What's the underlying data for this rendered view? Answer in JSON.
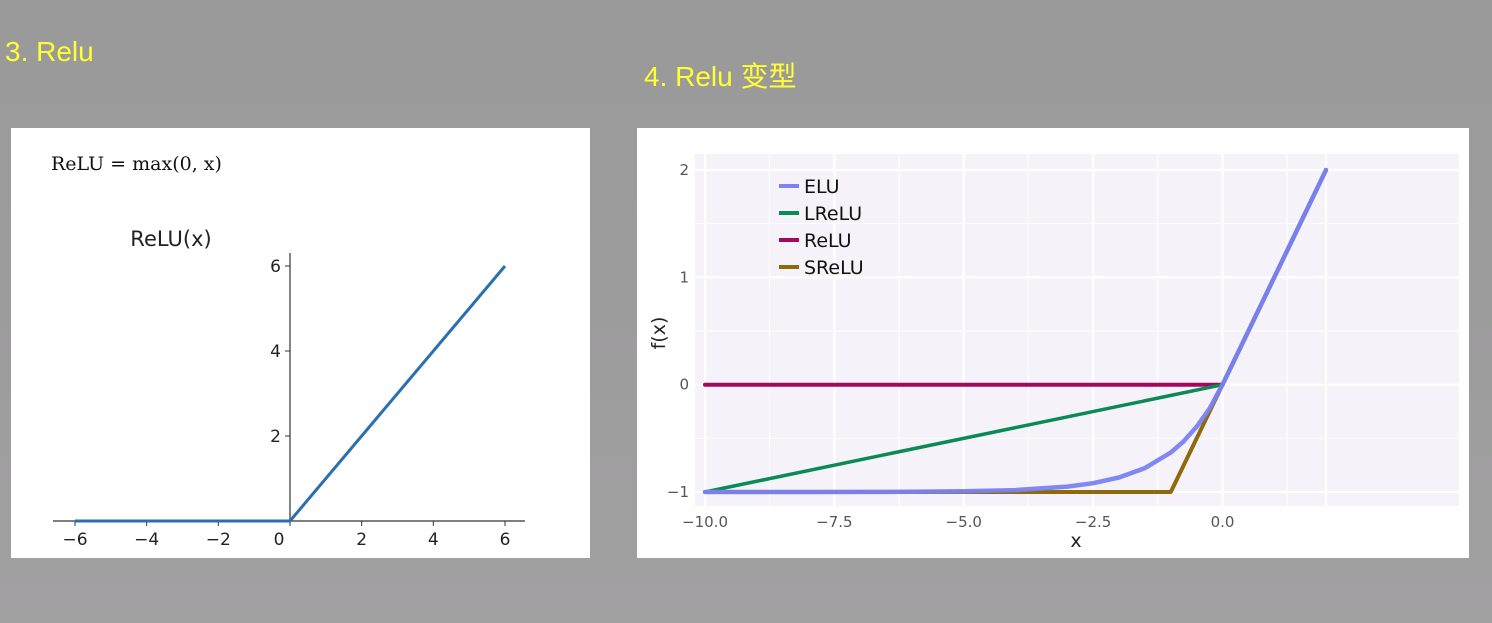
{
  "headings": {
    "left": "3. Relu",
    "right": "4. Relu 变型"
  },
  "colors": {
    "heading": "#ffff33",
    "relu_line": "#2a6fb0",
    "elu": "#7b82f2",
    "lrelu": "#0a8a55",
    "relu": "#a3075e",
    "srelu": "#8f6a0c",
    "plot_bg": "#f5f3f9"
  },
  "chart_data": [
    {
      "type": "line",
      "formula": "ReLU = max(0, x)",
      "title": "ReLU(x)",
      "xlabel": "",
      "ylabel": "",
      "xlim": [
        -6,
        6
      ],
      "ylim": [
        0,
        6
      ],
      "xticks": [
        "−6",
        "−4",
        "−2",
        "0",
        "2",
        "4",
        "6"
      ],
      "yticks": [
        "2",
        "4",
        "6"
      ],
      "grid": false,
      "series": [
        {
          "x": [
            -6,
            0,
            6
          ],
          "y": [
            0,
            0,
            6
          ]
        }
      ]
    },
    {
      "type": "line",
      "title": "",
      "xlabel": "x",
      "ylabel": "f(x)",
      "xlim": [
        -10,
        2
      ],
      "ylim": [
        -1,
        2
      ],
      "xticks": [
        "−10.0",
        "−7.5",
        "−5.0",
        "−2.5",
        "0.0"
      ],
      "yticks": [
        "−1",
        "0",
        "1",
        "2"
      ],
      "grid": true,
      "legend": "top-left",
      "series": [
        {
          "name": "ELU",
          "x": [
            -10,
            -8,
            -6,
            -5,
            -4,
            -3,
            -2.5,
            -2,
            -1.5,
            -1,
            -0.75,
            -0.5,
            -0.25,
            0,
            1,
            2
          ],
          "y": [
            -1,
            -1,
            -0.998,
            -0.993,
            -0.982,
            -0.95,
            -0.918,
            -0.865,
            -0.777,
            -0.632,
            -0.528,
            -0.393,
            -0.221,
            0,
            1,
            2
          ]
        },
        {
          "name": "LReLU",
          "x": [
            -10,
            0,
            1,
            2
          ],
          "y": [
            -1,
            0,
            1,
            2
          ]
        },
        {
          "name": "ReLU",
          "x": [
            -10,
            0,
            1,
            2
          ],
          "y": [
            0,
            0,
            1,
            2
          ]
        },
        {
          "name": "SReLU",
          "x": [
            -10,
            -1,
            0,
            1,
            2
          ],
          "y": [
            -1,
            -1,
            0,
            1,
            2
          ]
        }
      ]
    }
  ]
}
